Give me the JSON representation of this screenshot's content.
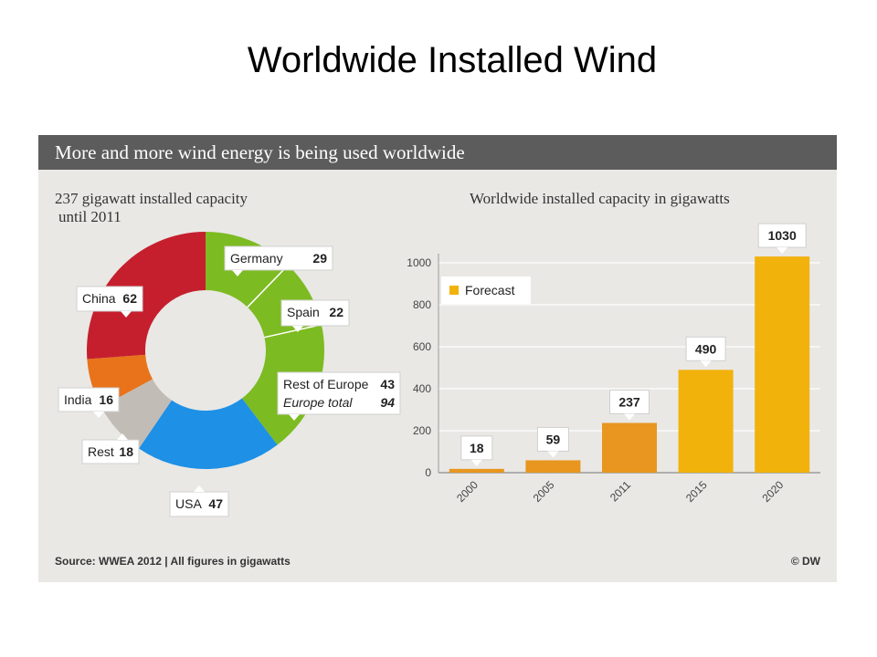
{
  "slide": {
    "title": "Worldwide Installed Wind"
  },
  "panel": {
    "header": "More and more wind energy is being used worldwide",
    "source": "Source: WWEA 2012 | All figures in gigawatts",
    "copyright": "© DW"
  },
  "chart_data": [
    {
      "type": "pie",
      "title": "237 gigawatt installed capacity until 2011",
      "title_line1": "237 gigawatt installed capacity",
      "title_line2": "until 2011",
      "slices": [
        {
          "label": "Germany",
          "value": 29,
          "color": "#7dbb22"
        },
        {
          "label": "Spain",
          "value": 22,
          "color": "#7dbb22"
        },
        {
          "label": "Rest of Europe",
          "value": 43,
          "color": "#7dbb22"
        },
        {
          "label": "USA",
          "value": 47,
          "color": "#1e90e6"
        },
        {
          "label": "Rest",
          "value": 18,
          "color": "#c1bdb6"
        },
        {
          "label": "India",
          "value": 16,
          "color": "#e8731b"
        },
        {
          "label": "China",
          "value": 62,
          "color": "#c51f2e"
        }
      ],
      "annotations": [
        {
          "text": "Europe total",
          "value": 94
        }
      ]
    },
    {
      "type": "bar",
      "title": "Worldwide installed capacity in gigawatts",
      "categories": [
        "2000",
        "2005",
        "2011",
        "2015",
        "2020"
      ],
      "values": [
        18,
        59,
        237,
        490,
        1030
      ],
      "forecast": [
        false,
        false,
        false,
        true,
        true
      ],
      "colors": {
        "actual": "#e8961f",
        "forecast": "#f2b20c"
      },
      "legend": {
        "label": "Forecast",
        "placement": "top-left"
      },
      "ylim": [
        0,
        1000
      ],
      "yticks": [
        0,
        200,
        400,
        600,
        800,
        1000
      ],
      "grid": true
    }
  ]
}
